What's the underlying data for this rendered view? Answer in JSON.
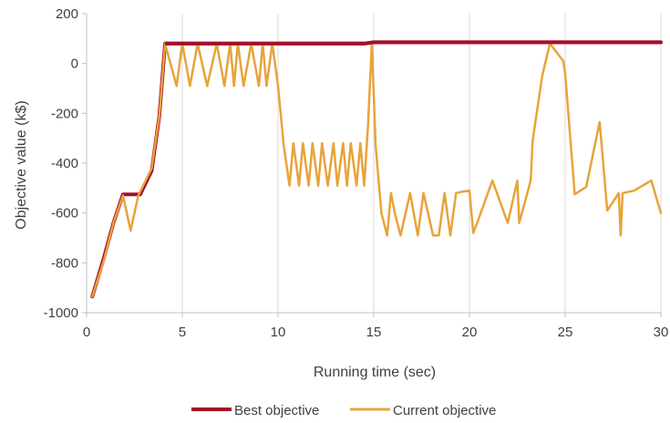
{
  "chart_data": {
    "type": "line",
    "title": "",
    "xlabel": "Running time (sec)",
    "ylabel": "Objective value (k$)",
    "xlim": [
      0,
      30
    ],
    "ylim": [
      -1000,
      200
    ],
    "xticks": [
      0,
      5,
      10,
      15,
      20,
      25,
      30
    ],
    "yticks": [
      200,
      0,
      -200,
      -400,
      -600,
      -800,
      -1000
    ],
    "grid": "vertical",
    "legend": "bottom",
    "series": [
      {
        "name": "Best objective",
        "color": "#a50e2a",
        "x": [
          0.3,
          0.9,
          1.4,
          1.9,
          2.3,
          2.8,
          3.4,
          3.8,
          4.1,
          5,
          10,
          14.5,
          15,
          20,
          25,
          30
        ],
        "y": [
          -935,
          -780,
          -640,
          -525,
          -525,
          -525,
          -430,
          -210,
          80,
          80,
          80,
          80,
          85,
          85,
          85,
          85
        ]
      },
      {
        "name": "Current objective",
        "color": "#e8a33a",
        "x": [
          0.3,
          0.9,
          1.4,
          1.9,
          2.3,
          2.7,
          3.4,
          3.8,
          4.1,
          4.7,
          5.0,
          5.4,
          5.8,
          6.3,
          6.8,
          7.2,
          7.5,
          7.7,
          7.9,
          8.2,
          8.6,
          9.0,
          9.2,
          9.4,
          9.7,
          10.0,
          10.3,
          10.6,
          10.8,
          11.1,
          11.3,
          11.6,
          11.8,
          12.1,
          12.3,
          12.6,
          12.9,
          13.1,
          13.4,
          13.6,
          13.8,
          14.1,
          14.3,
          14.5,
          14.7,
          14.9,
          15.1,
          15.4,
          15.7,
          15.9,
          16.1,
          16.4,
          16.9,
          17.3,
          17.6,
          18.1,
          18.4,
          18.7,
          19.0,
          19.3,
          19.6,
          20.0,
          20.2,
          20.4,
          21.2,
          22.0,
          22.5,
          22.6,
          23.2,
          23.3,
          23.8,
          24.2,
          24.9,
          25.0,
          25.5,
          26.1,
          26.8,
          27.2,
          27.8,
          27.9,
          28.0,
          28.6,
          29.5,
          30.0
        ],
        "y": [
          -935,
          -790,
          -640,
          -530,
          -670,
          -530,
          -420,
          -210,
          80,
          -90,
          80,
          -90,
          80,
          -90,
          80,
          -90,
          80,
          -90,
          80,
          -90,
          80,
          -90,
          80,
          -90,
          80,
          -90,
          -330,
          -490,
          -320,
          -490,
          -320,
          -490,
          -320,
          -490,
          -320,
          -490,
          -320,
          -490,
          -320,
          -490,
          -320,
          -490,
          -320,
          -490,
          -250,
          80,
          -330,
          -600,
          -690,
          -520,
          -600,
          -690,
          -520,
          -690,
          -520,
          -690,
          -690,
          -520,
          -690,
          -520,
          -515,
          -510,
          -680,
          -640,
          -470,
          -640,
          -470,
          -640,
          -470,
          -310,
          -50,
          80,
          10,
          -40,
          -525,
          -495,
          -235,
          -590,
          -520,
          -690,
          -520,
          -510,
          -470,
          -600
        ]
      }
    ]
  }
}
